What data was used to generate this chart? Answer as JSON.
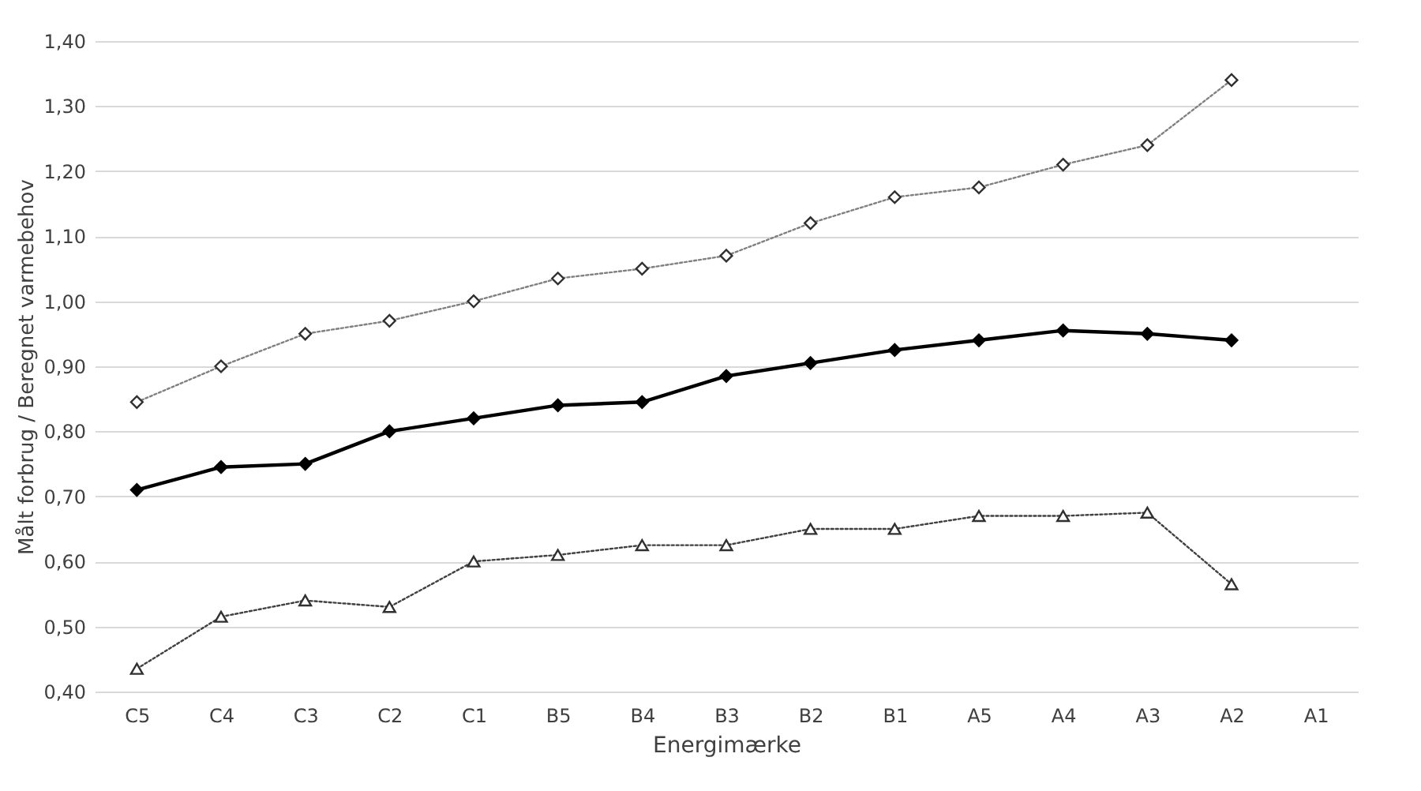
{
  "chart_data": {
    "type": "line",
    "xlabel": "Energimærke",
    "ylabel": "Målt forbrug / Beregnet varmebehov",
    "categories": [
      "C5",
      "C4",
      "C3",
      "C2",
      "C1",
      "B5",
      "B4",
      "B3",
      "B2",
      "B1",
      "A5",
      "A4",
      "A3",
      "A2",
      "A1"
    ],
    "series": [
      {
        "color": "#808080",
        "marker": "diamond",
        "line_style": "dotted",
        "values": [
          0.845,
          0.9,
          0.95,
          0.97,
          1.0,
          1.035,
          1.05,
          1.07,
          1.12,
          1.16,
          1.175,
          1.21,
          1.24,
          1.34,
          null
        ]
      },
      {
        "color": "#000000",
        "marker": "diamond",
        "line_style": "solid",
        "values": [
          0.71,
          0.745,
          0.75,
          0.8,
          0.82,
          0.84,
          0.845,
          0.885,
          0.905,
          0.925,
          0.94,
          0.955,
          0.95,
          0.94,
          null
        ]
      },
      {
        "color": "#404040",
        "marker": "triangle",
        "line_style": "dotted",
        "values": [
          0.435,
          0.515,
          0.54,
          0.53,
          0.6,
          0.61,
          0.625,
          0.625,
          0.65,
          0.65,
          0.67,
          0.67,
          0.675,
          0.565,
          null
        ]
      }
    ],
    "ylim": [
      0.4,
      1.4
    ],
    "yticks": [
      {
        "value": 0.4,
        "label": "0,40"
      },
      {
        "value": 0.5,
        "label": "0,50"
      },
      {
        "value": 0.6,
        "label": "0,60"
      },
      {
        "value": 0.7,
        "label": "0,70"
      },
      {
        "value": 0.8,
        "label": "0,80"
      },
      {
        "value": 0.9,
        "label": "0,90"
      },
      {
        "value": 1.0,
        "label": "1,00"
      },
      {
        "value": 1.1,
        "label": "1,10"
      },
      {
        "value": 1.2,
        "label": "1,20"
      },
      {
        "value": 1.3,
        "label": "1,30"
      },
      {
        "value": 1.4,
        "label": "1,40"
      }
    ],
    "grid": "y"
  }
}
